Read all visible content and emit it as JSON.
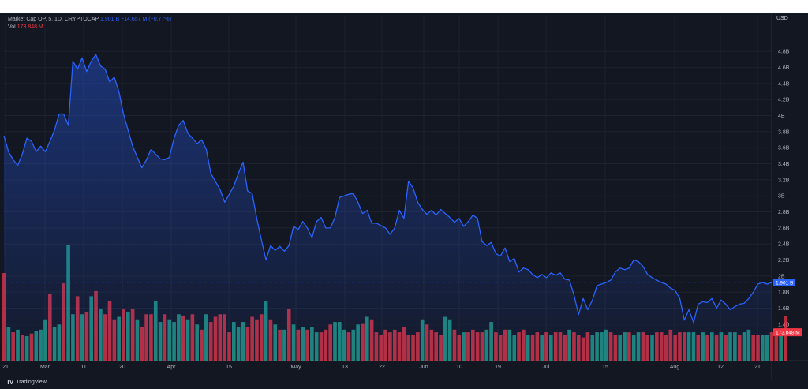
{
  "legend": {
    "title": "Market Cap OP, 5, 1D, CRYPTOCAP",
    "last_value": "1.901 B",
    "change": "−14.657 M (−0.77%)",
    "vol_label": "Vol",
    "vol_value": "173.848 M"
  },
  "price_axis": {
    "currency": "USD",
    "current_label": "1.901 B",
    "volume_label": "173.848 M"
  },
  "footer": {
    "brand": "TradingView",
    "logo": "TV"
  },
  "colors": {
    "background": "#131722",
    "line": "#2962ff",
    "up_volume": "#22ab94",
    "down_volume": "#f23645",
    "grid": "#1e222d",
    "text": "#b2b5be"
  },
  "chart_data": {
    "type": "area",
    "title": "Market Cap OP",
    "x_tick_labels": [
      "21",
      "Mar",
      "11",
      "20",
      "Apr",
      "15",
      "May",
      "13",
      "22",
      "Jun",
      "10",
      "19",
      "Jul",
      "15",
      "Aug",
      "12",
      "21"
    ],
    "y_tick_labels": [
      "1.4B",
      "1.6B",
      "1.8B",
      "2B",
      "2.2B",
      "2.4B",
      "2.6B",
      "2.8B",
      "3B",
      "3.2B",
      "3.4B",
      "3.6B",
      "3.8B",
      "4B",
      "4.2B",
      "4.4B",
      "4.6B",
      "4.8B"
    ],
    "ylim": [
      1.3,
      4.95
    ],
    "y_unit": "B",
    "grid": true,
    "series": [
      {
        "type": "area",
        "values": [
          3.75,
          3.55,
          3.45,
          3.38,
          3.52,
          3.72,
          3.68,
          3.55,
          3.62,
          3.55,
          3.68,
          3.82,
          4.02,
          4.02,
          3.88,
          4.68,
          4.58,
          4.72,
          4.55,
          4.68,
          4.76,
          4.62,
          4.58,
          4.42,
          4.48,
          4.3,
          4.02,
          3.82,
          3.62,
          3.48,
          3.35,
          3.45,
          3.58,
          3.52,
          3.46,
          3.45,
          3.48,
          3.72,
          3.88,
          3.94,
          3.78,
          3.72,
          3.65,
          3.7,
          3.58,
          3.28,
          3.18,
          3.08,
          2.92,
          3.02,
          3.12,
          3.28,
          3.42,
          3.06,
          3.03,
          2.72,
          2.45,
          2.2,
          2.38,
          2.32,
          2.37,
          2.31,
          2.38,
          2.62,
          2.58,
          2.68,
          2.6,
          2.48,
          2.68,
          2.73,
          2.6,
          2.6,
          2.73,
          2.98,
          3.0,
          3.02,
          3.03,
          2.92,
          2.78,
          2.82,
          2.66,
          2.66,
          2.63,
          2.6,
          2.52,
          2.6,
          2.82,
          2.72,
          3.18,
          3.1,
          2.92,
          2.83,
          2.77,
          2.82,
          2.76,
          2.83,
          2.78,
          2.73,
          2.67,
          2.72,
          2.62,
          2.68,
          2.76,
          2.72,
          2.43,
          2.38,
          2.42,
          2.28,
          2.25,
          2.35,
          2.18,
          2.22,
          2.05,
          2.1,
          2.08,
          2.02,
          1.98,
          2.02,
          1.98,
          2.04,
          2.01,
          2.04,
          1.96,
          1.95,
          1.76,
          1.52,
          1.72,
          1.58,
          1.7,
          1.88,
          1.9,
          1.92,
          1.95,
          2.05,
          2.1,
          2.08,
          2.1,
          2.2,
          2.18,
          2.12,
          2.02,
          1.98,
          1.95,
          1.92,
          1.9,
          1.85,
          1.82,
          1.72,
          1.45,
          1.58,
          1.42,
          1.65,
          1.68,
          1.67,
          1.72,
          1.6,
          1.7,
          1.65,
          1.58,
          1.62,
          1.65,
          1.66,
          1.72,
          1.8,
          1.9,
          1.92,
          1.9,
          1.92
        ]
      },
      {
        "type": "volume",
        "values_m": [
          340,
          130,
          110,
          120,
          100,
          95,
          105,
          115,
          120,
          160,
          260,
          130,
          140,
          300,
          450,
          180,
          250,
          180,
          190,
          250,
          270,
          200,
          180,
          230,
          160,
          170,
          200,
          190,
          200,
          160,
          130,
          180,
          180,
          230,
          150,
          180,
          160,
          150,
          180,
          175,
          160,
          180,
          140,
          120,
          180,
          150,
          170,
          180,
          180,
          110,
          150,
          130,
          150,
          130,
          170,
          160,
          180,
          230,
          160,
          140,
          120,
          120,
          200,
          140,
          120,
          130,
          120,
          130,
          110,
          110,
          120,
          140,
          150,
          150,
          120,
          110,
          120,
          140,
          145,
          170,
          160,
          110,
          100,
          120,
          110,
          120,
          110,
          130,
          100,
          100,
          110,
          160,
          140,
          120,
          110,
          100,
          170,
          160,
          120,
          100,
          110,
          110,
          120,
          110,
          110,
          120,
          150,
          110,
          100,
          120,
          120,
          100,
          110,
          120,
          100,
          100,
          110,
          100,
          110,
          100,
          110,
          110,
          100,
          120,
          110,
          100,
          90,
          110,
          100,
          110,
          110,
          120,
          110,
          100,
          100,
          110,
          110,
          100,
          110,
          110,
          100,
          100,
          110,
          110,
          100,
          120,
          100,
          110,
          110,
          110,
          110,
          100,
          110,
          100,
          110,
          100,
          110,
          100,
          110,
          110,
          100,
          110,
          120,
          100,
          100,
          100,
          100,
          110,
          100,
          100,
          173.848
        ],
        "up": [
          0,
          1,
          0,
          1,
          0,
          1,
          0,
          1,
          1,
          1,
          0,
          1,
          1,
          0,
          1,
          1,
          0,
          1,
          0,
          1,
          0,
          1,
          0,
          0,
          0,
          1,
          0,
          1,
          0,
          1,
          0,
          0,
          0,
          1,
          1,
          0,
          1,
          1,
          1,
          0,
          1,
          0,
          1,
          0,
          1,
          0,
          0,
          0,
          0,
          0,
          1,
          1,
          1,
          0,
          0,
          0,
          0,
          1,
          0,
          1,
          0,
          1,
          0,
          1,
          0,
          1,
          0,
          1,
          1,
          0,
          0,
          0,
          1,
          1,
          1,
          0,
          1,
          1,
          0,
          1,
          0,
          0,
          0,
          0,
          0,
          0,
          0,
          0,
          0,
          0,
          0,
          1,
          0,
          0,
          0,
          0,
          1,
          1,
          0,
          0,
          1,
          0,
          0,
          0,
          0,
          1,
          1,
          0,
          0,
          0,
          1,
          1,
          0,
          0,
          1,
          0,
          0,
          1,
          0,
          1,
          0,
          0,
          0,
          1,
          0,
          0,
          0,
          0,
          1,
          1,
          1,
          1,
          0,
          0,
          1,
          1,
          0,
          1,
          1,
          0,
          0,
          1,
          0,
          0,
          0,
          0,
          0,
          0,
          0,
          1,
          1,
          0,
          1,
          0,
          1,
          0,
          1,
          0,
          1,
          1,
          0,
          1,
          1,
          0,
          0,
          1,
          1,
          0,
          0,
          1,
          0
        ]
      }
    ]
  }
}
